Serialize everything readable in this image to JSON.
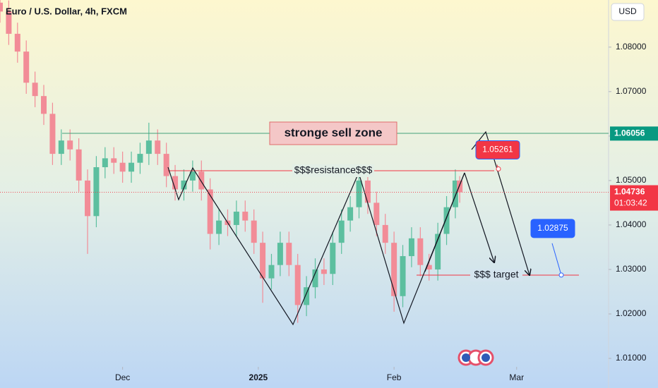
{
  "chart_data": {
    "type": "candlestick",
    "title": "Euro / U.S. Dollar, 4h, FXCM",
    "currency": "USD",
    "up_color": "#5cbf9f",
    "down_color": "#f28c97",
    "x": [
      0,
      2,
      4,
      6,
      8,
      10,
      12,
      14,
      16,
      18,
      20,
      22,
      24,
      26,
      28,
      30,
      32,
      34,
      36,
      38,
      40,
      42,
      44,
      46,
      48,
      50,
      52,
      54,
      56,
      58,
      60,
      62,
      64,
      66,
      68,
      70,
      72,
      74,
      76,
      78,
      80,
      82,
      84,
      86,
      88,
      90,
      92,
      94,
      96,
      98,
      100,
      102,
      104,
      105
    ],
    "open": [
      1.09,
      1.088,
      1.083,
      1.079,
      1.072,
      1.069,
      1.065,
      1.056,
      1.059,
      1.057,
      1.05,
      1.042,
      1.053,
      1.055,
      1.054,
      1.052,
      1.054,
      1.056,
      1.059,
      1.056,
      1.051,
      1.048,
      1.05,
      1.052,
      1.048,
      1.038,
      1.041,
      1.04,
      1.043,
      1.041,
      1.036,
      1.028,
      1.031,
      1.036,
      1.031,
      1.022,
      1.026,
      1.03,
      1.029,
      1.036,
      1.041,
      1.044,
      1.05,
      1.045,
      1.04,
      1.036,
      1.024,
      1.033,
      1.037,
      1.031,
      1.03,
      1.038,
      1.044,
      1.05
    ],
    "high": [
      1.0925,
      1.0905,
      1.0855,
      1.0815,
      1.0745,
      1.0715,
      1.0675,
      1.0615,
      1.0615,
      1.0595,
      1.0525,
      1.0555,
      1.0575,
      1.0575,
      1.0565,
      1.0565,
      1.0585,
      1.063,
      1.0615,
      1.0585,
      1.0535,
      1.0525,
      1.0545,
      1.0545,
      1.0505,
      1.0435,
      1.0435,
      1.0455,
      1.0455,
      1.0435,
      1.0385,
      1.0335,
      1.0385,
      1.0385,
      1.0335,
      1.0285,
      1.0325,
      1.0325,
      1.0385,
      1.0435,
      1.0465,
      1.053,
      1.0525,
      1.0475,
      1.0425,
      1.0385,
      1.0355,
      1.0395,
      1.0395,
      1.0335,
      1.0405,
      1.0465,
      1.0525,
      1.051
    ],
    "low": [
      1.0855,
      1.0805,
      1.0765,
      1.0695,
      1.0665,
      1.0625,
      1.0535,
      1.0535,
      1.0545,
      1.0475,
      1.0335,
      1.0395,
      1.0505,
      1.0515,
      1.0495,
      1.0495,
      1.0515,
      1.0535,
      1.0535,
      1.0485,
      1.0455,
      1.0455,
      1.0475,
      1.0455,
      1.0345,
      1.0355,
      1.0375,
      1.0375,
      1.0385,
      1.0335,
      1.0225,
      1.0255,
      1.0285,
      1.0285,
      1.018,
      1.0195,
      1.0235,
      1.0265,
      1.0265,
      1.0335,
      1.0385,
      1.0415,
      1.0425,
      1.0375,
      1.0335,
      1.0205,
      1.0215,
      1.0305,
      1.0285,
      1.0275,
      1.0275,
      1.0355,
      1.0415,
      1.045
    ],
    "close": [
      1.088,
      1.083,
      1.079,
      1.072,
      1.069,
      1.065,
      1.056,
      1.059,
      1.057,
      1.05,
      1.042,
      1.053,
      1.055,
      1.054,
      1.052,
      1.054,
      1.056,
      1.059,
      1.056,
      1.051,
      1.048,
      1.05,
      1.052,
      1.048,
      1.038,
      1.041,
      1.04,
      1.043,
      1.041,
      1.036,
      1.028,
      1.031,
      1.036,
      1.031,
      1.022,
      1.026,
      1.03,
      1.029,
      1.036,
      1.041,
      1.044,
      1.05,
      1.045,
      1.04,
      1.036,
      1.024,
      1.033,
      1.037,
      1.031,
      1.03,
      1.038,
      1.044,
      1.05,
      1.0474
    ],
    "xlim": [
      0,
      139
    ],
    "ylim": [
      1.0081,
      1.0906
    ],
    "xticks": [
      {
        "value": 28,
        "label": "Dec"
      },
      {
        "value": 59,
        "label": "2025"
      },
      {
        "value": 90,
        "label": "Feb"
      },
      {
        "value": 118,
        "label": "Mar"
      }
    ],
    "yticks": [
      {
        "value": 1.01,
        "label": "1.01000"
      },
      {
        "value": 1.02,
        "label": "1.02000"
      },
      {
        "value": 1.03,
        "label": "1.03000"
      },
      {
        "value": 1.04,
        "label": "1.04000"
      },
      {
        "value": 1.05,
        "label": "1.05000"
      },
      {
        "value": 1.06,
        "label": "1.06000"
      },
      {
        "value": 1.07,
        "label": "1.07000"
      },
      {
        "value": 1.08,
        "label": "1.08000"
      }
    ],
    "last_price": 1.04736,
    "countdown": "01:03:42",
    "zone_level": 1.06056,
    "callouts": [
      {
        "value": 1.05261,
        "color": "#f23645"
      },
      {
        "value": 1.02875,
        "color": "#2962ff"
      }
    ],
    "annotations": [
      "stronge sell zone",
      "$$$resistance$$$",
      "$$$ target"
    ]
  }
}
